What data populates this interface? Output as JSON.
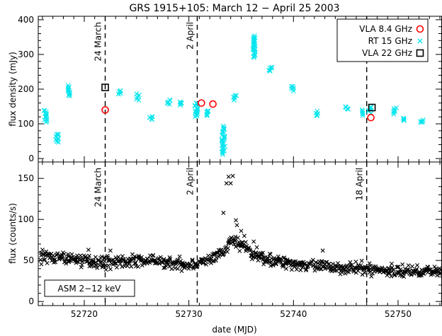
{
  "chart_data": [
    {
      "type": "scatter",
      "title": "GRS 1915+105: March 12 − April 25 2003",
      "ylabel": "flux density (mJy)",
      "xlim": [
        52715.6,
        52754.2
      ],
      "ylim": [
        -10,
        410
      ],
      "yticks": [
        0,
        100,
        200,
        300,
        400
      ],
      "grid": false,
      "legend_position": "top-right",
      "annotations": [
        {
          "x": 52722.0,
          "text": "24 March"
        },
        {
          "x": 52730.8,
          "text": "2 April"
        },
        {
          "x": 52747.0,
          "text": "18 April"
        }
      ],
      "series": [
        {
          "name": "VLA 8.4 GHz",
          "marker": "circle",
          "color": "#ff0000",
          "points": [
            [
              52722.0,
              140
            ],
            [
              52731.2,
              160
            ],
            [
              52732.3,
              157
            ],
            [
              52747.4,
              118
            ]
          ]
        },
        {
          "name": "RT 15 GHz",
          "marker": "x",
          "color": "#00e5ee",
          "segments": [
            [
              52716.3,
              140,
              105
            ],
            [
              52717.4,
              72,
              45
            ],
            [
              52718.5,
              210,
              180
            ],
            [
              52723.4,
              195,
              185
            ],
            [
              52725.1,
              185,
              170
            ],
            [
              52726.4,
              122,
              112
            ],
            [
              52728.1,
              168,
              158
            ],
            [
              52729.3,
              165,
              155
            ],
            [
              52730.7,
              160,
              120
            ],
            [
              52731.7,
              140,
              123
            ],
            [
              52733.3,
              92,
              12
            ],
            [
              52734.4,
              182,
              170
            ],
            [
              52736.2,
              355,
              290
            ],
            [
              52737.8,
              265,
              250
            ],
            [
              52739.9,
              210,
              195
            ],
            [
              52742.2,
              135,
              122
            ],
            [
              52745.1,
              150,
              140
            ],
            [
              52746.5,
              140,
              125
            ],
            [
              52747.3,
              150,
              132
            ],
            [
              52749.7,
              145,
              128
            ],
            [
              52750.5,
              117,
              110
            ],
            [
              52752.3,
              110,
              102
            ]
          ]
        },
        {
          "name": "VLA 22 GHz",
          "marker": "square",
          "color": "#000000",
          "points": [
            [
              52722.0,
              205
            ],
            [
              52747.5,
              147
            ]
          ]
        }
      ]
    },
    {
      "type": "scatter",
      "xlabel": "date (MJD)",
      "ylabel": "flux (counts/s)",
      "xlim": [
        52715.6,
        52754.2
      ],
      "ylim": [
        -5,
        170
      ],
      "xticks": [
        52720,
        52730,
        52740,
        52750
      ],
      "yticks": [
        0,
        50,
        100,
        150
      ],
      "grid": false,
      "legend_position": "bottom-left",
      "legend_box": "ASM 2−12 keV",
      "annotations": [
        {
          "x": 52722.0,
          "text": "24 March"
        },
        {
          "x": 52730.8,
          "text": "2 April"
        },
        {
          "x": 52747.0,
          "text": "18 April"
        }
      ],
      "series": [
        {
          "marker": "x",
          "color": "#000000",
          "baseline_trend": [
            [
              52715.8,
              55
            ],
            [
              52722,
              48
            ],
            [
              52726,
              50
            ],
            [
              52730,
              45
            ],
            [
              52732,
              50
            ],
            [
              52733.5,
              62
            ],
            [
              52734,
              75
            ],
            [
              52735,
              70
            ],
            [
              52736,
              58
            ],
            [
              52738,
              50
            ],
            [
              52742,
              43
            ],
            [
              52746,
              40
            ],
            [
              52750,
              37
            ],
            [
              52754,
              37
            ]
          ],
          "spread": 8,
          "outliers": [
            [
              52716.0,
              63
            ],
            [
              52720.4,
              63
            ],
            [
              52722.5,
              62
            ],
            [
              52733.3,
              108
            ],
            [
              52733.6,
              144
            ],
            [
              52734.0,
              144
            ],
            [
              52733.8,
              152
            ],
            [
              52734.2,
              153
            ],
            [
              52734.5,
              99
            ],
            [
              52734.6,
              93
            ],
            [
              52735.0,
              86
            ],
            [
              52735.3,
              80
            ],
            [
              52736.2,
              73
            ],
            [
              52736.5,
              66
            ],
            [
              52737.0,
              57
            ],
            [
              52742.8,
              62
            ]
          ]
        }
      ]
    }
  ]
}
